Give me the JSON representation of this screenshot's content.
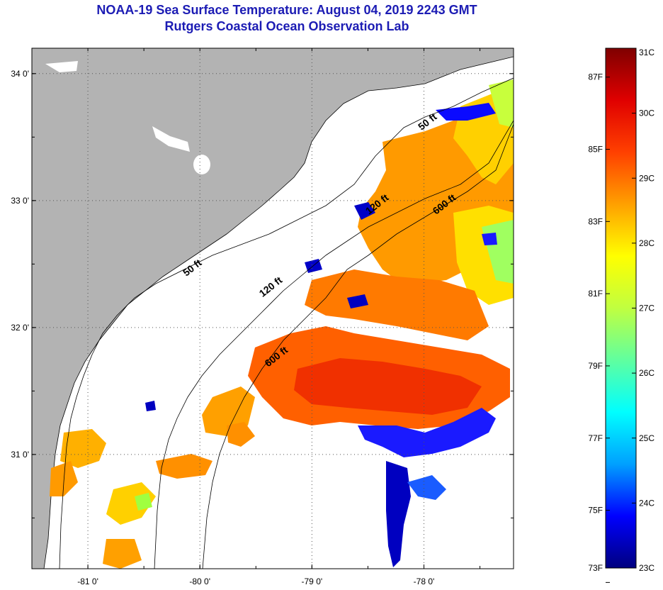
{
  "title": {
    "line1": "NOAA-19 Sea Surface Temperature:  August 04, 2019 2243 GMT",
    "line2": "Rutgers Coastal Ocean Observation Lab"
  },
  "map": {
    "lon_range": [
      -81.5,
      -77.2
    ],
    "lat_range": [
      30.1,
      34.2
    ],
    "lon_ticks": [
      {
        "value": -81,
        "label": "-81 0'"
      },
      {
        "value": -80,
        "label": "-80 0'"
      },
      {
        "value": -79,
        "label": "-79 0'"
      },
      {
        "value": -78,
        "label": "-78 0'"
      }
    ],
    "lat_ticks": [
      {
        "value": 34,
        "label": "34 0'"
      },
      {
        "value": 33,
        "label": "33 0'"
      },
      {
        "value": 32,
        "label": "32 0'"
      },
      {
        "value": 31,
        "label": "31 0'"
      }
    ],
    "contours": [
      {
        "label": "50 ft",
        "lon": -80.05,
        "lat": 32.45
      },
      {
        "label": "50 ft",
        "lon": -77.95,
        "lat": 33.6
      },
      {
        "label": "120 ft",
        "lon": -79.35,
        "lat": 32.3
      },
      {
        "label": "120 ft",
        "lon": -78.4,
        "lat": 32.95
      },
      {
        "label": "600 ft",
        "lon": -79.3,
        "lat": 31.75
      },
      {
        "label": "600 ft",
        "lon": -77.8,
        "lat": 32.95
      }
    ],
    "colors": {
      "land": "#b3b3b3",
      "ocean_nodata": "#ffffff",
      "grid": "#555555"
    }
  },
  "colorbar": {
    "celsius_labels": [
      "31C",
      "30C",
      "29C",
      "28C",
      "27C",
      "26C",
      "25C",
      "24C",
      "23C"
    ],
    "fahrenheit_labels": [
      "87F",
      "85F",
      "83F",
      "81F",
      "79F",
      "77F",
      "75F",
      "73F"
    ],
    "celsius_range": [
      23,
      31
    ],
    "stops": [
      "#00007f",
      "#0000ff",
      "#00a0ff",
      "#00ffff",
      "#60ff9f",
      "#c0ff40",
      "#ffff00",
      "#ffa000",
      "#ff4000",
      "#e00000",
      "#7f0000"
    ]
  }
}
